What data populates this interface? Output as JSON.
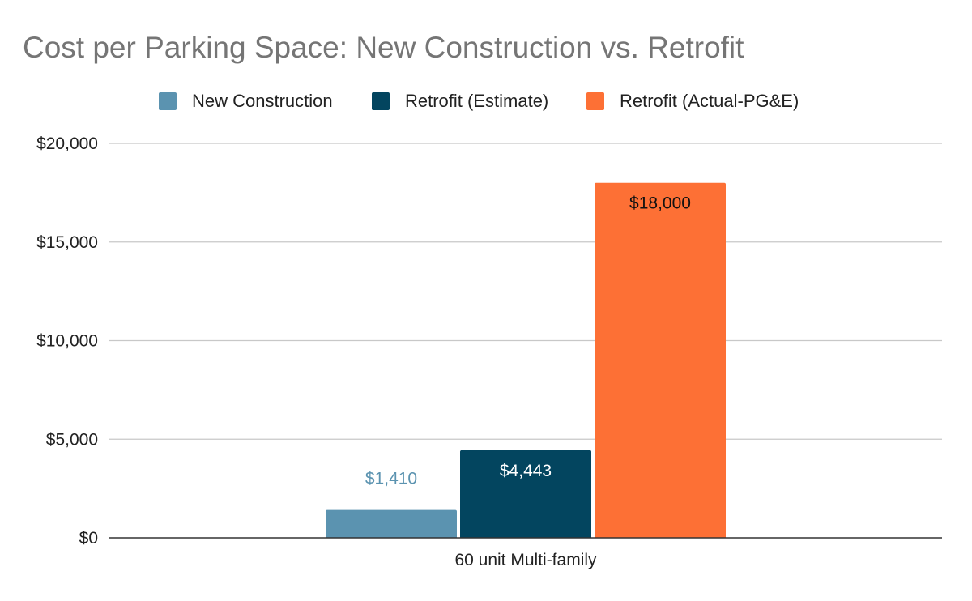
{
  "chart_data": {
    "type": "bar",
    "title": "Cost per Parking Space: New Construction vs. Retrofit",
    "categories": [
      "60 unit Multi-family"
    ],
    "series": [
      {
        "name": "New Construction",
        "values": [
          1410
        ],
        "color": "#5b93b0",
        "label": "$1,410",
        "label_position": "above",
        "label_color": "#5b93b0"
      },
      {
        "name": "Retrofit (Estimate)",
        "values": [
          4443
        ],
        "color": "#03455f",
        "label": "$4,443",
        "label_position": "inside-top",
        "label_color": "#ffffff"
      },
      {
        "name": "Retrofit (Actual-PG&E)",
        "values": [
          18000
        ],
        "color": "#fd7035",
        "label": "$18,000",
        "label_position": "inside-top",
        "label_color": "#111111"
      }
    ],
    "y_ticks": [
      0,
      5000,
      10000,
      15000,
      20000
    ],
    "y_tick_labels": [
      "$0",
      "$5,000",
      "$10,000",
      "$15,000",
      "$20,000"
    ],
    "ylim": [
      0,
      20000
    ],
    "grid": true,
    "legend_position": "top-center",
    "xlabel": "",
    "ylabel": ""
  }
}
